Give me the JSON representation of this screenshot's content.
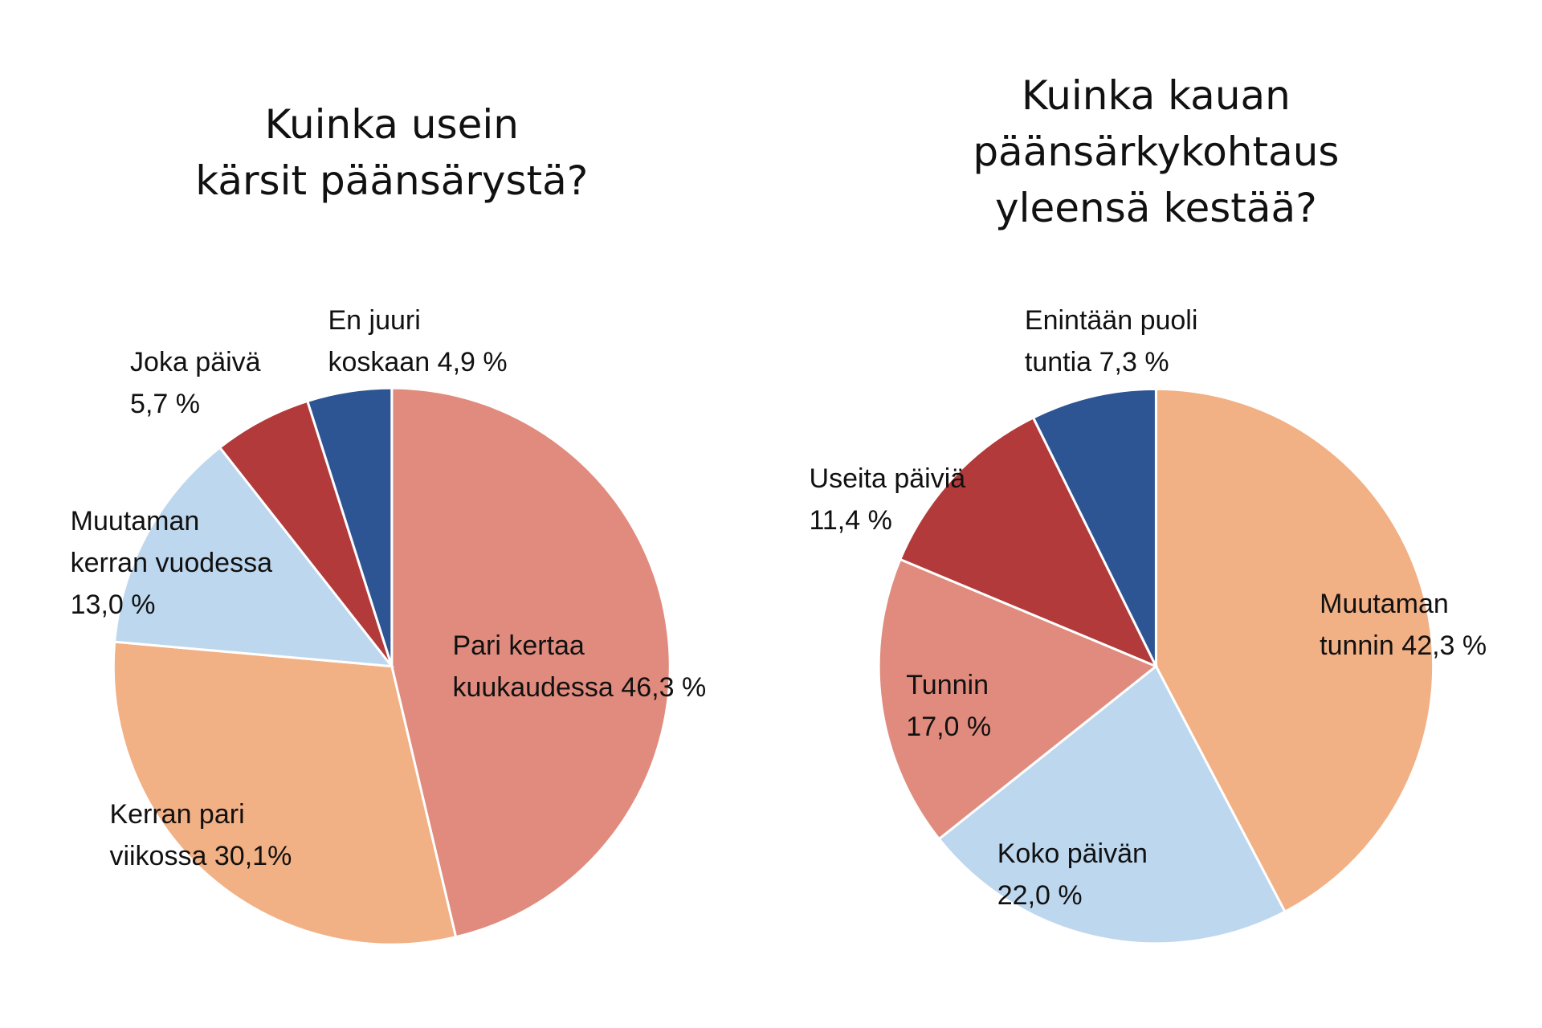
{
  "chart_data": [
    {
      "type": "pie",
      "title": "Kuinka usein\nkärsit päänsärystä?",
      "categories": [
        "Pari kertaa\nkuukaudessa",
        "Kerran pari\nviikossa",
        "Muutaman\nkerran vuodessa",
        "Joka päivä",
        "En juuri\nkoskaan"
      ],
      "values": [
        46.3,
        30.1,
        13.0,
        5.7,
        4.9
      ],
      "value_labels": [
        "46,3 %",
        "30,1%",
        "13,0 %",
        "5,7 %",
        "4,9 %"
      ],
      "colors": [
        "#e08b7d",
        "#f2b085",
        "#bdd7ee",
        "#b33a3a",
        "#2e5593"
      ]
    },
    {
      "type": "pie",
      "title": "Kuinka kauan\npäänsärkykohtaus\nyleensä kestää?",
      "categories": [
        "Muutaman\ntunnin",
        "Koko päivän",
        "Tunnin",
        "Useita päiviä",
        "Enintään puoli\ntuntia"
      ],
      "values": [
        42.3,
        22.0,
        17.0,
        11.4,
        7.3
      ],
      "value_labels": [
        "42,3 %",
        "22,0 %",
        "17,0 %",
        "11,4 %",
        "7,3 %"
      ],
      "colors": [
        "#f2b085",
        "#bdd7ee",
        "#e08b7d",
        "#b33a3a",
        "#2e5593"
      ]
    }
  ]
}
